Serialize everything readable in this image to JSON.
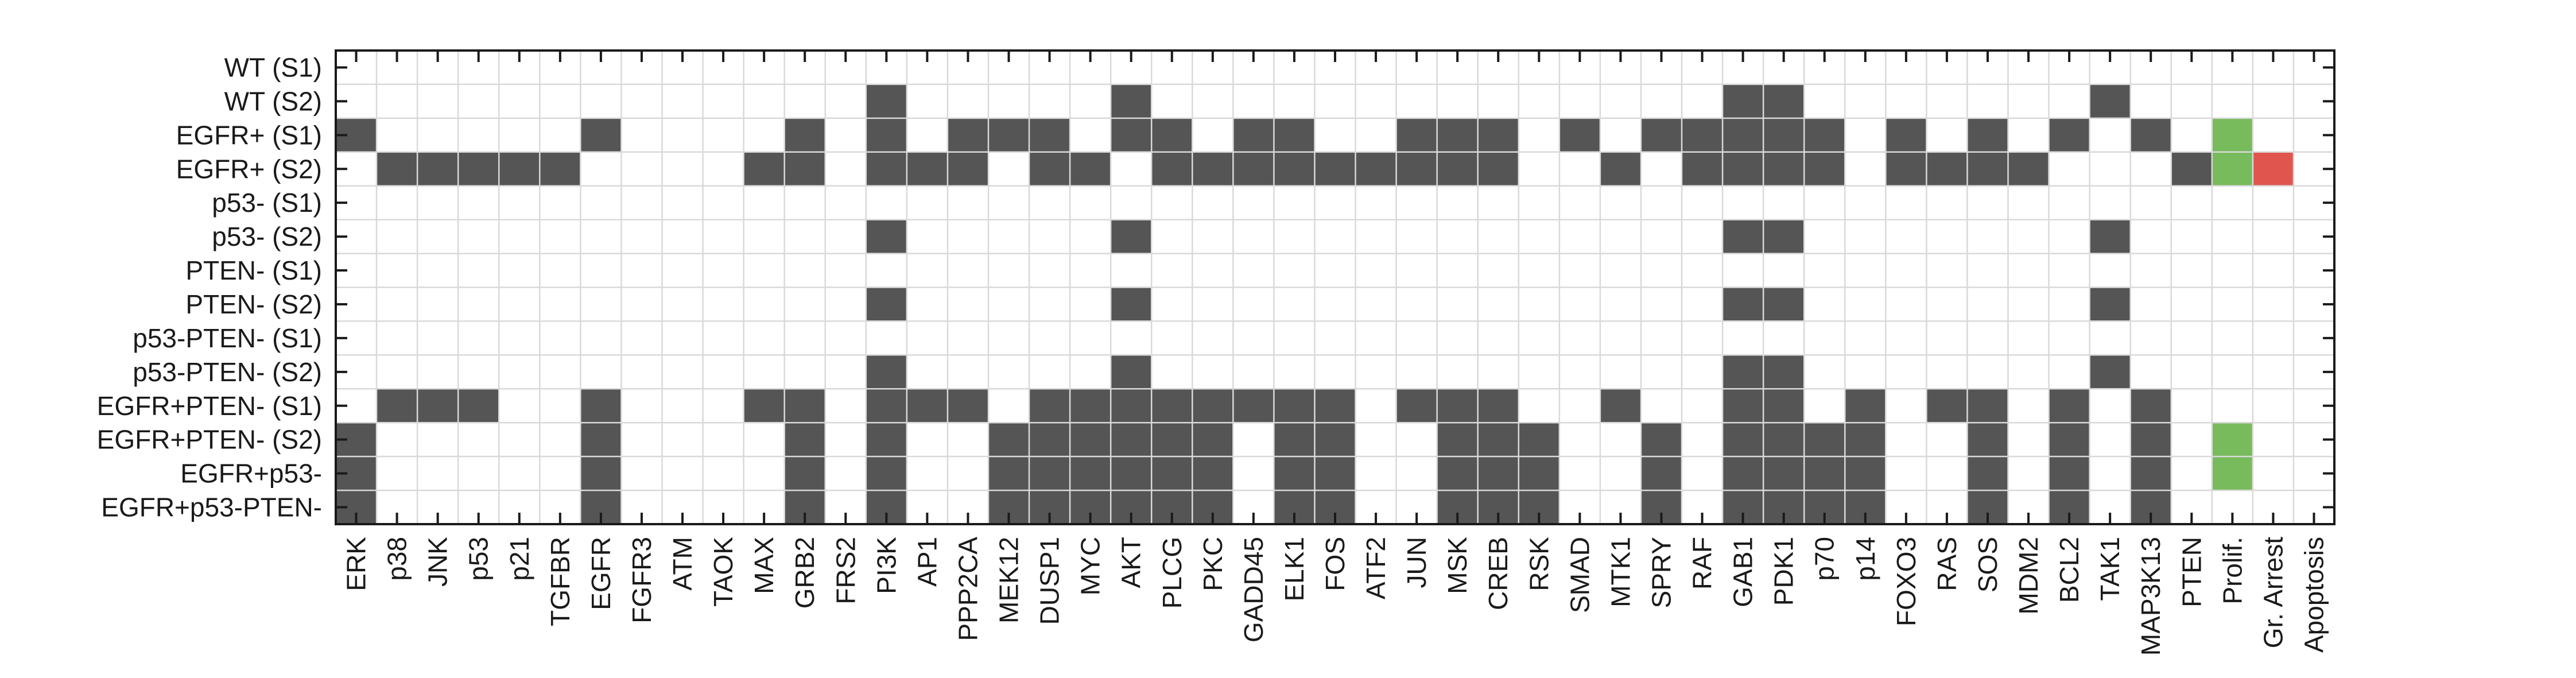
{
  "chart_data": {
    "type": "heatmap",
    "title": "",
    "xlabel": "",
    "ylabel": "",
    "grid": true,
    "rows": [
      "WT (S1)",
      "WT (S2)",
      "EGFR+ (S1)",
      "EGFR+ (S2)",
      "p53- (S1)",
      "p53- (S2)",
      "PTEN- (S1)",
      "PTEN- (S2)",
      "p53-PTEN- (S1)",
      "p53-PTEN- (S2)",
      "EGFR+PTEN- (S1)",
      "EGFR+PTEN- (S2)",
      "EGFR+p53-",
      "EGFR+p53-PTEN-"
    ],
    "columns": [
      "ERK",
      "p38",
      "JNK",
      "p53",
      "p21",
      "TGFBR",
      "EGFR",
      "FGFR3",
      "ATM",
      "TAOK",
      "MAX",
      "GRB2",
      "FRS2",
      "PI3K",
      "AP1",
      "PPP2CA",
      "MEK12",
      "DUSP1",
      "MYC",
      "AKT",
      "PLCG",
      "PKC",
      "GADD45",
      "ELK1",
      "FOS",
      "ATF2",
      "JUN",
      "MSK",
      "CREB",
      "RSK",
      "SMAD",
      "MTK1",
      "SPRY",
      "RAF",
      "GAB1",
      "PDK1",
      "p70",
      "p14",
      "FOXO3",
      "RAS",
      "SOS",
      "MDM2",
      "BCL2",
      "TAK1",
      "MAP3K13",
      "PTEN",
      "Prolif.",
      "Gr. Arrest",
      "Apoptosis"
    ],
    "colors": {
      "active": "#555555",
      "Prolif.": "#77bb5c",
      "Gr. Arrest": "#e0564f",
      "Apoptosis": "#f0e85a",
      "grid": "#d9d9d9",
      "background": "#ffffff"
    },
    "values": [
      "0000000000000000000000000000000000000000000000000",
      "0000000000000100000100000000000000110000000100000",
      "1000001000010101110110110011101011111010101010100",
      "0111110000110111011011111111100101111011110001110",
      "0000000000000000000000000000000000000000000000000",
      "0000000000000100000100000000000000110000000100000",
      "0000000000000000000000000000000000000000000000000",
      "0000000000000100000100000000000000110000000100000",
      "0000000000000000000000000000000000000000000000000",
      "0000000000000100000100000000000000110000000100000",
      "0111001000110111011111111011100100110101101010000",
      "1000001000010100111111011001110010111100101010100",
      "1000001000010100111111011001110010111100101010100",
      "1000001000010100111111011001110010111100101010000"
    ]
  }
}
